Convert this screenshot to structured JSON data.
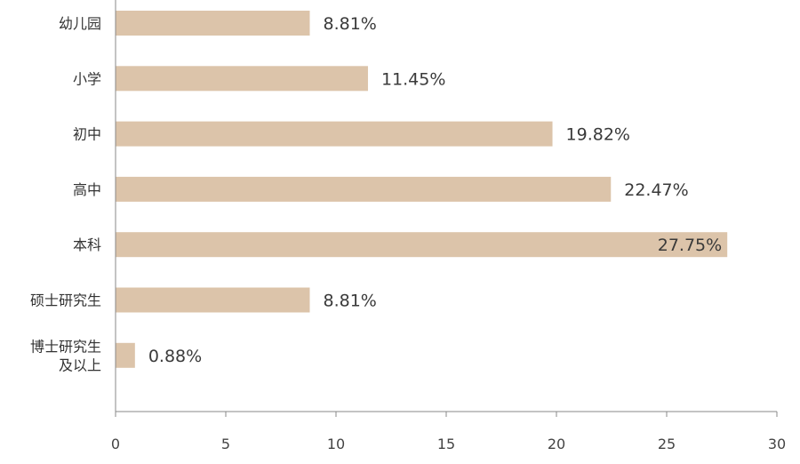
{
  "chart_data": {
    "type": "bar",
    "orientation": "horizontal",
    "categories": [
      [
        "幼儿园"
      ],
      [
        "小学"
      ],
      [
        "初中"
      ],
      [
        "高中"
      ],
      [
        "本科"
      ],
      [
        "硕士研究生"
      ],
      [
        "博士研究生",
        "及以上"
      ]
    ],
    "values": [
      8.81,
      11.45,
      19.82,
      22.47,
      27.75,
      8.81,
      0.88
    ],
    "value_labels": [
      "8.81%",
      "11.45%",
      "19.82%",
      "22.47%",
      "27.75%",
      "8.81%",
      "0.88%"
    ],
    "xlim": [
      0,
      30
    ],
    "xticks": [
      0,
      5,
      10,
      15,
      20,
      25,
      30
    ],
    "title": "",
    "xlabel": "",
    "ylabel": "",
    "grid": false,
    "legend": "none",
    "colors": {
      "bar": "#dcc4aa",
      "axis": "#888888",
      "text": "#333333"
    }
  }
}
